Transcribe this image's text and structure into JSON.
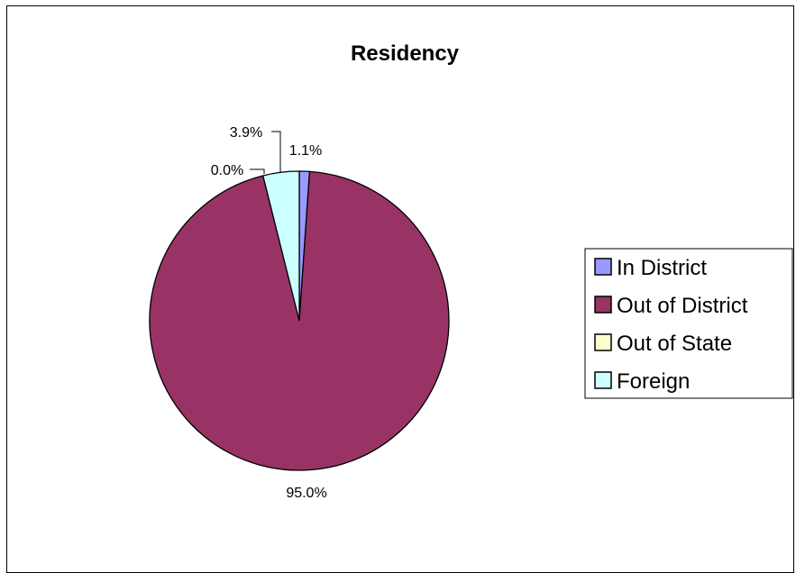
{
  "chart_data": {
    "type": "pie",
    "title": "Residency",
    "categories": [
      "In District",
      "Out of District",
      "Out of State",
      "Foreign"
    ],
    "values": [
      1.1,
      95.0,
      0.0,
      3.9
    ],
    "value_labels": [
      "1.1%",
      "95.0%",
      "0.0%",
      "3.9%"
    ],
    "colors": [
      "#9999FF",
      "#993366",
      "#FFFFCC",
      "#CCFFFF"
    ],
    "legend": {
      "position": "right",
      "entries": [
        "In District",
        "Out of District",
        "Out of State",
        "Foreign"
      ]
    }
  }
}
